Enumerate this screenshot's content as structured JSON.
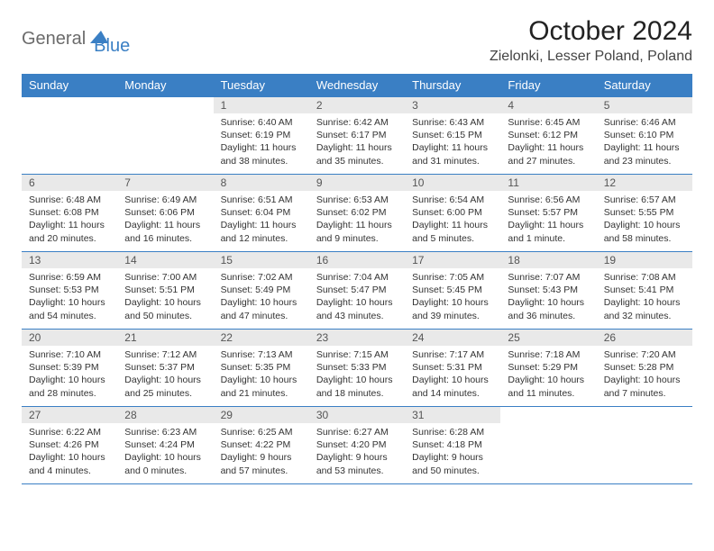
{
  "brand": {
    "part1": "General",
    "part2": "Blue"
  },
  "title": "October 2024",
  "location": "Zielonki, Lesser Poland, Poland",
  "colors": {
    "header_bg": "#3a7fc4",
    "header_text": "#ffffff",
    "daynum_bg": "#e9e9e9",
    "border": "#3a7fc4",
    "brand_grey": "#6b6b6b",
    "brand_blue": "#3a7fc4"
  },
  "weekdays": [
    "Sunday",
    "Monday",
    "Tuesday",
    "Wednesday",
    "Thursday",
    "Friday",
    "Saturday"
  ],
  "weeks": [
    [
      null,
      null,
      {
        "n": "1",
        "sr": "Sunrise: 6:40 AM",
        "ss": "Sunset: 6:19 PM",
        "dl1": "Daylight: 11 hours",
        "dl2": "and 38 minutes."
      },
      {
        "n": "2",
        "sr": "Sunrise: 6:42 AM",
        "ss": "Sunset: 6:17 PM",
        "dl1": "Daylight: 11 hours",
        "dl2": "and 35 minutes."
      },
      {
        "n": "3",
        "sr": "Sunrise: 6:43 AM",
        "ss": "Sunset: 6:15 PM",
        "dl1": "Daylight: 11 hours",
        "dl2": "and 31 minutes."
      },
      {
        "n": "4",
        "sr": "Sunrise: 6:45 AM",
        "ss": "Sunset: 6:12 PM",
        "dl1": "Daylight: 11 hours",
        "dl2": "and 27 minutes."
      },
      {
        "n": "5",
        "sr": "Sunrise: 6:46 AM",
        "ss": "Sunset: 6:10 PM",
        "dl1": "Daylight: 11 hours",
        "dl2": "and 23 minutes."
      }
    ],
    [
      {
        "n": "6",
        "sr": "Sunrise: 6:48 AM",
        "ss": "Sunset: 6:08 PM",
        "dl1": "Daylight: 11 hours",
        "dl2": "and 20 minutes."
      },
      {
        "n": "7",
        "sr": "Sunrise: 6:49 AM",
        "ss": "Sunset: 6:06 PM",
        "dl1": "Daylight: 11 hours",
        "dl2": "and 16 minutes."
      },
      {
        "n": "8",
        "sr": "Sunrise: 6:51 AM",
        "ss": "Sunset: 6:04 PM",
        "dl1": "Daylight: 11 hours",
        "dl2": "and 12 minutes."
      },
      {
        "n": "9",
        "sr": "Sunrise: 6:53 AM",
        "ss": "Sunset: 6:02 PM",
        "dl1": "Daylight: 11 hours",
        "dl2": "and 9 minutes."
      },
      {
        "n": "10",
        "sr": "Sunrise: 6:54 AM",
        "ss": "Sunset: 6:00 PM",
        "dl1": "Daylight: 11 hours",
        "dl2": "and 5 minutes."
      },
      {
        "n": "11",
        "sr": "Sunrise: 6:56 AM",
        "ss": "Sunset: 5:57 PM",
        "dl1": "Daylight: 11 hours",
        "dl2": "and 1 minute."
      },
      {
        "n": "12",
        "sr": "Sunrise: 6:57 AM",
        "ss": "Sunset: 5:55 PM",
        "dl1": "Daylight: 10 hours",
        "dl2": "and 58 minutes."
      }
    ],
    [
      {
        "n": "13",
        "sr": "Sunrise: 6:59 AM",
        "ss": "Sunset: 5:53 PM",
        "dl1": "Daylight: 10 hours",
        "dl2": "and 54 minutes."
      },
      {
        "n": "14",
        "sr": "Sunrise: 7:00 AM",
        "ss": "Sunset: 5:51 PM",
        "dl1": "Daylight: 10 hours",
        "dl2": "and 50 minutes."
      },
      {
        "n": "15",
        "sr": "Sunrise: 7:02 AM",
        "ss": "Sunset: 5:49 PM",
        "dl1": "Daylight: 10 hours",
        "dl2": "and 47 minutes."
      },
      {
        "n": "16",
        "sr": "Sunrise: 7:04 AM",
        "ss": "Sunset: 5:47 PM",
        "dl1": "Daylight: 10 hours",
        "dl2": "and 43 minutes."
      },
      {
        "n": "17",
        "sr": "Sunrise: 7:05 AM",
        "ss": "Sunset: 5:45 PM",
        "dl1": "Daylight: 10 hours",
        "dl2": "and 39 minutes."
      },
      {
        "n": "18",
        "sr": "Sunrise: 7:07 AM",
        "ss": "Sunset: 5:43 PM",
        "dl1": "Daylight: 10 hours",
        "dl2": "and 36 minutes."
      },
      {
        "n": "19",
        "sr": "Sunrise: 7:08 AM",
        "ss": "Sunset: 5:41 PM",
        "dl1": "Daylight: 10 hours",
        "dl2": "and 32 minutes."
      }
    ],
    [
      {
        "n": "20",
        "sr": "Sunrise: 7:10 AM",
        "ss": "Sunset: 5:39 PM",
        "dl1": "Daylight: 10 hours",
        "dl2": "and 28 minutes."
      },
      {
        "n": "21",
        "sr": "Sunrise: 7:12 AM",
        "ss": "Sunset: 5:37 PM",
        "dl1": "Daylight: 10 hours",
        "dl2": "and 25 minutes."
      },
      {
        "n": "22",
        "sr": "Sunrise: 7:13 AM",
        "ss": "Sunset: 5:35 PM",
        "dl1": "Daylight: 10 hours",
        "dl2": "and 21 minutes."
      },
      {
        "n": "23",
        "sr": "Sunrise: 7:15 AM",
        "ss": "Sunset: 5:33 PM",
        "dl1": "Daylight: 10 hours",
        "dl2": "and 18 minutes."
      },
      {
        "n": "24",
        "sr": "Sunrise: 7:17 AM",
        "ss": "Sunset: 5:31 PM",
        "dl1": "Daylight: 10 hours",
        "dl2": "and 14 minutes."
      },
      {
        "n": "25",
        "sr": "Sunrise: 7:18 AM",
        "ss": "Sunset: 5:29 PM",
        "dl1": "Daylight: 10 hours",
        "dl2": "and 11 minutes."
      },
      {
        "n": "26",
        "sr": "Sunrise: 7:20 AM",
        "ss": "Sunset: 5:28 PM",
        "dl1": "Daylight: 10 hours",
        "dl2": "and 7 minutes."
      }
    ],
    [
      {
        "n": "27",
        "sr": "Sunrise: 6:22 AM",
        "ss": "Sunset: 4:26 PM",
        "dl1": "Daylight: 10 hours",
        "dl2": "and 4 minutes."
      },
      {
        "n": "28",
        "sr": "Sunrise: 6:23 AM",
        "ss": "Sunset: 4:24 PM",
        "dl1": "Daylight: 10 hours",
        "dl2": "and 0 minutes."
      },
      {
        "n": "29",
        "sr": "Sunrise: 6:25 AM",
        "ss": "Sunset: 4:22 PM",
        "dl1": "Daylight: 9 hours",
        "dl2": "and 57 minutes."
      },
      {
        "n": "30",
        "sr": "Sunrise: 6:27 AM",
        "ss": "Sunset: 4:20 PM",
        "dl1": "Daylight: 9 hours",
        "dl2": "and 53 minutes."
      },
      {
        "n": "31",
        "sr": "Sunrise: 6:28 AM",
        "ss": "Sunset: 4:18 PM",
        "dl1": "Daylight: 9 hours",
        "dl2": "and 50 minutes."
      },
      null,
      null
    ]
  ]
}
